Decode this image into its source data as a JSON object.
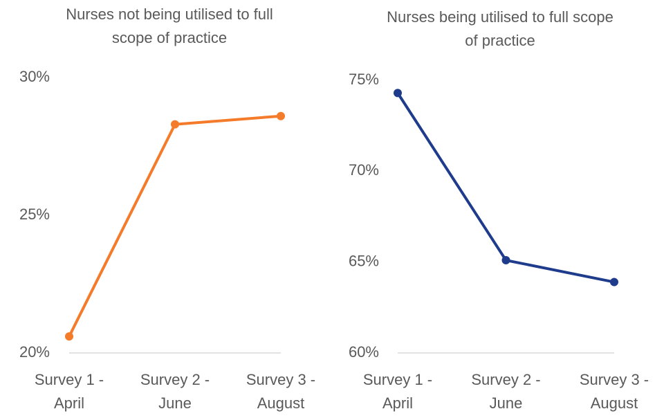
{
  "chart_data": [
    {
      "type": "line",
      "title": "Nurses not being utilised to full scope of practice",
      "categories": [
        "Survey 1 - April",
        "Survey 2 - June",
        "Survey 3 - August"
      ],
      "series": [
        {
          "name": "Nurses not being utilised to full scope of practice",
          "color": "#f47b2a",
          "values": [
            20.6,
            28.3,
            28.6
          ]
        }
      ],
      "ylim": [
        20,
        30
      ],
      "yticks": [
        {
          "value": 20,
          "label": "20%"
        },
        {
          "value": 25,
          "label": "25%"
        },
        {
          "value": 30,
          "label": "30%"
        }
      ]
    },
    {
      "type": "line",
      "title": "Nurses being utilised to full scope of practice",
      "categories": [
        "Survey 1 - April",
        "Survey 2 - June",
        "Survey 3 - August"
      ],
      "series": [
        {
          "name": "Nurses being utilised to full scope of practice",
          "color": "#1f3c8c",
          "values": [
            74.3,
            65.1,
            63.9
          ]
        }
      ],
      "ylim": [
        60,
        75
      ],
      "yticks": [
        {
          "value": 60,
          "label": "60%"
        },
        {
          "value": 65,
          "label": "65%"
        },
        {
          "value": 70,
          "label": "70%"
        },
        {
          "value": 75,
          "label": "75%"
        }
      ]
    }
  ]
}
